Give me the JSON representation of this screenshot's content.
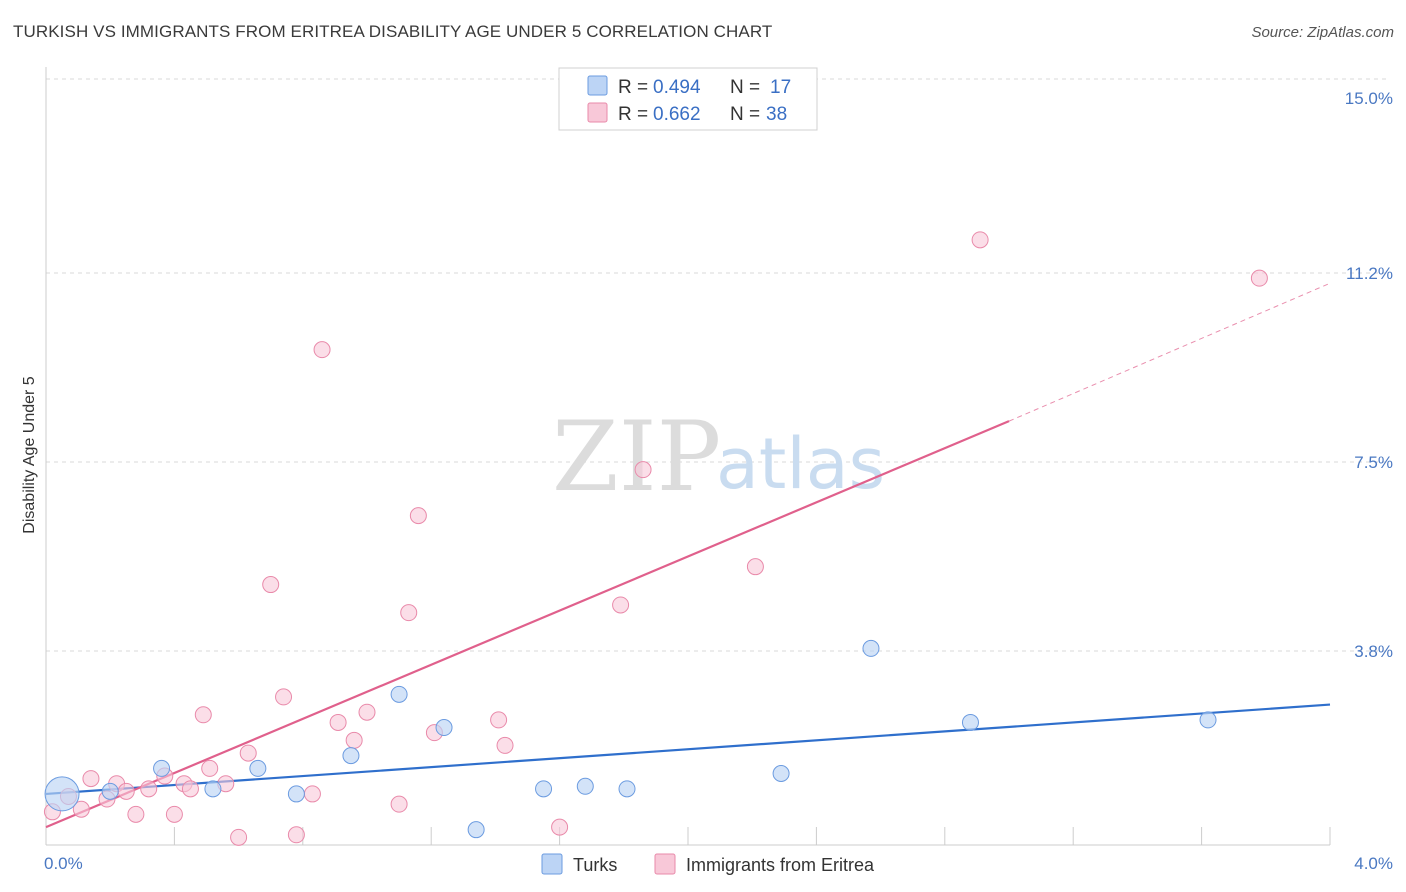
{
  "title": "TURKISH VS IMMIGRANTS FROM ERITREA DISABILITY AGE UNDER 5 CORRELATION CHART",
  "source": "Source: ZipAtlas.com",
  "watermark": {
    "zip": "ZIP",
    "atlas": "atlas"
  },
  "legend": {
    "rows": [
      {
        "r_label": "R = ",
        "r_value": "0.494",
        "n_label": "N = ",
        "n_value": "17"
      },
      {
        "r_label": "R = ",
        "r_value": "0.662",
        "n_label": "N = ",
        "n_value": "38"
      }
    ]
  },
  "colors": {
    "turks_fill": "#bcd4f5",
    "turks_stroke": "#6b9be0",
    "turks_line": "#2f6fcc",
    "eritrea_fill": "#f8c8d8",
    "eritrea_stroke": "#e98aaa",
    "eritrea_line": "#e0608c",
    "grid": "#d8d8d8",
    "tick_label": "#4a78c2"
  },
  "chart_data": {
    "type": "scatter",
    "xlabel": "",
    "ylabel": "Disability Age Under 5",
    "xlim": [
      0,
      4.0
    ],
    "ylim": [
      0,
      15.0
    ],
    "x_tick_labels": [
      "0.0%",
      "4.0%"
    ],
    "y_ticks": [
      3.8,
      7.5,
      11.2,
      15.0
    ],
    "y_tick_labels": [
      "3.8%",
      "7.5%",
      "11.2%",
      "15.0%"
    ],
    "grid": "horizontal dashed",
    "legend_position": "top-center",
    "series": [
      {
        "name": "Turks",
        "points": [
          [
            0.05,
            1.0
          ],
          [
            0.2,
            1.05
          ],
          [
            0.36,
            1.5
          ],
          [
            0.52,
            1.1
          ],
          [
            0.66,
            1.5
          ],
          [
            0.78,
            1.0
          ],
          [
            0.95,
            1.75
          ],
          [
            1.1,
            2.95
          ],
          [
            1.24,
            2.3
          ],
          [
            1.34,
            0.3
          ],
          [
            1.55,
            1.1
          ],
          [
            1.68,
            1.15
          ],
          [
            1.81,
            1.1
          ],
          [
            2.29,
            1.4
          ],
          [
            2.57,
            3.85
          ],
          [
            2.88,
            2.4
          ],
          [
            3.62,
            2.45
          ]
        ],
        "trend": {
          "x0": 0.0,
          "y0": 1.0,
          "x1": 4.0,
          "y1": 2.75
        }
      },
      {
        "name": "Immigrants from Eritrea",
        "points": [
          [
            0.02,
            0.65
          ],
          [
            0.07,
            0.95
          ],
          [
            0.11,
            0.7
          ],
          [
            0.14,
            1.3
          ],
          [
            0.19,
            0.9
          ],
          [
            0.22,
            1.2
          ],
          [
            0.25,
            1.05
          ],
          [
            0.28,
            0.6
          ],
          [
            0.32,
            1.1
          ],
          [
            0.37,
            1.35
          ],
          [
            0.4,
            0.6
          ],
          [
            0.43,
            1.2
          ],
          [
            0.45,
            1.1
          ],
          [
            0.49,
            2.55
          ],
          [
            0.51,
            1.5
          ],
          [
            0.56,
            1.2
          ],
          [
            0.6,
            0.15
          ],
          [
            0.63,
            1.8
          ],
          [
            0.7,
            5.1
          ],
          [
            0.74,
            2.9
          ],
          [
            0.78,
            0.2
          ],
          [
            0.83,
            1.0
          ],
          [
            0.86,
            9.7
          ],
          [
            0.91,
            2.4
          ],
          [
            0.96,
            2.05
          ],
          [
            1.0,
            2.6
          ],
          [
            1.1,
            0.8
          ],
          [
            1.13,
            4.55
          ],
          [
            1.16,
            6.45
          ],
          [
            1.21,
            2.2
          ],
          [
            1.41,
            2.45
          ],
          [
            1.43,
            1.95
          ],
          [
            1.6,
            0.35
          ],
          [
            1.79,
            4.7
          ],
          [
            1.86,
            7.35
          ],
          [
            2.21,
            5.45
          ],
          [
            2.91,
            11.85
          ],
          [
            3.78,
            11.1
          ]
        ],
        "trend": {
          "x0": 0.0,
          "y0": 0.35,
          "x1": 3.0,
          "y1": 8.3
        },
        "trend_extension": {
          "x0": 3.0,
          "y0": 8.3,
          "x1": 4.0,
          "y1": 11.0
        }
      }
    ]
  }
}
